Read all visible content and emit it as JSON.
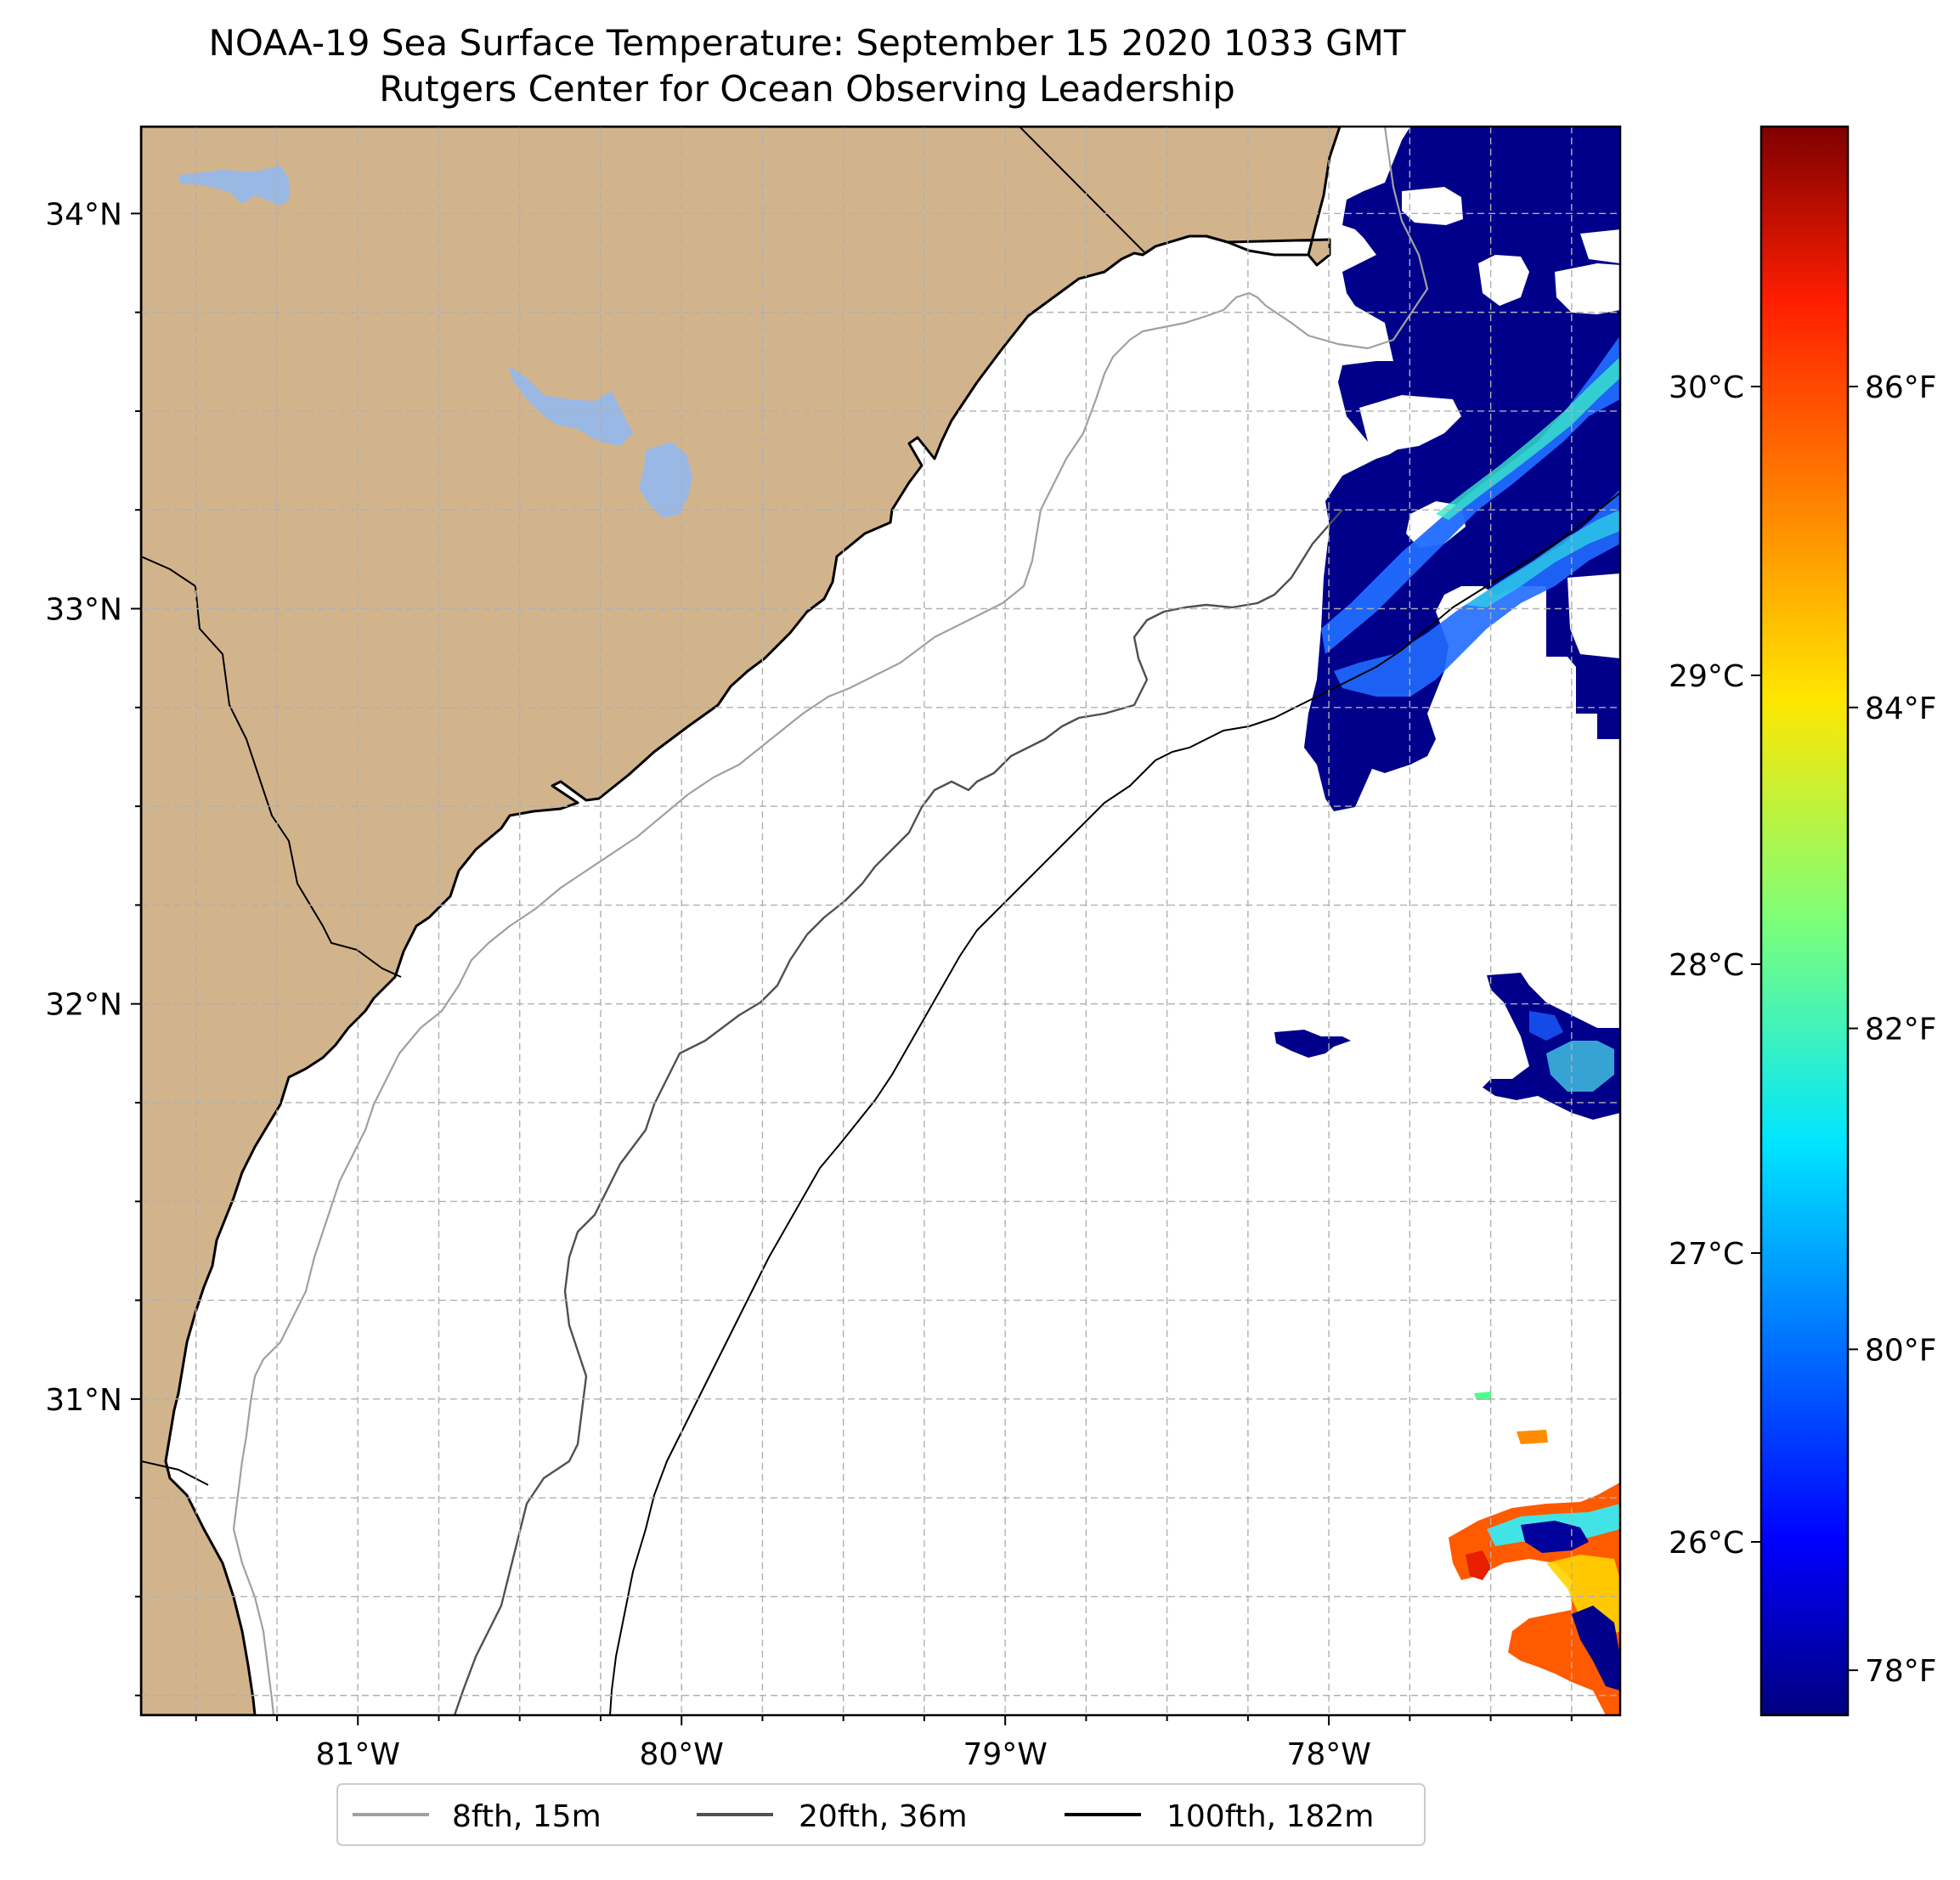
{
  "title": "NOAA-19 Sea Surface Temperature: September 15 2020 1033 GMT",
  "subtitle": "Rutgers Center for Ocean Observing Leadership",
  "map": {
    "lon_range": [
      -81.67,
      -77.1
    ],
    "lat_range": [
      30.2,
      34.22
    ],
    "lon_ticks": [
      {
        "value": -81,
        "label": "81°W"
      },
      {
        "value": -80,
        "label": "80°W"
      },
      {
        "value": -79,
        "label": "79°W"
      },
      {
        "value": -78,
        "label": "78°W"
      }
    ],
    "lat_ticks": [
      {
        "value": 34,
        "label": "34°N"
      },
      {
        "value": 33,
        "label": "33°N"
      },
      {
        "value": 32,
        "label": "32°N"
      },
      {
        "value": 31,
        "label": "31°N"
      }
    ],
    "grid": true,
    "colors": {
      "land": "#d2b48c",
      "water_bodies": "#9ab8e4",
      "coastline": "#000000",
      "ocean_no_data": "#ffffff"
    }
  },
  "colorbar": {
    "colormap": "jet",
    "celsius_range": [
      25.4,
      30.9
    ],
    "celsius_ticks": [
      {
        "value": 30,
        "label": "30°C"
      },
      {
        "value": 29,
        "label": "29°C"
      },
      {
        "value": 28,
        "label": "28°C"
      },
      {
        "value": 27,
        "label": "27°C"
      },
      {
        "value": 26,
        "label": "26°C"
      }
    ],
    "fahrenheit_ticks": [
      {
        "value": 86,
        "label": "86°F"
      },
      {
        "value": 84,
        "label": "84°F"
      },
      {
        "value": 82,
        "label": "82°F"
      },
      {
        "value": 80,
        "label": "80°F"
      },
      {
        "value": 78,
        "label": "78°F"
      }
    ]
  },
  "legend": {
    "placement": "bottom-center",
    "items": [
      {
        "label": "8fth, 15m",
        "color": "#a0a0a0"
      },
      {
        "label": "20fth, 36m",
        "color": "#505050"
      },
      {
        "label": "100fth, 182m",
        "color": "#000000"
      }
    ]
  }
}
